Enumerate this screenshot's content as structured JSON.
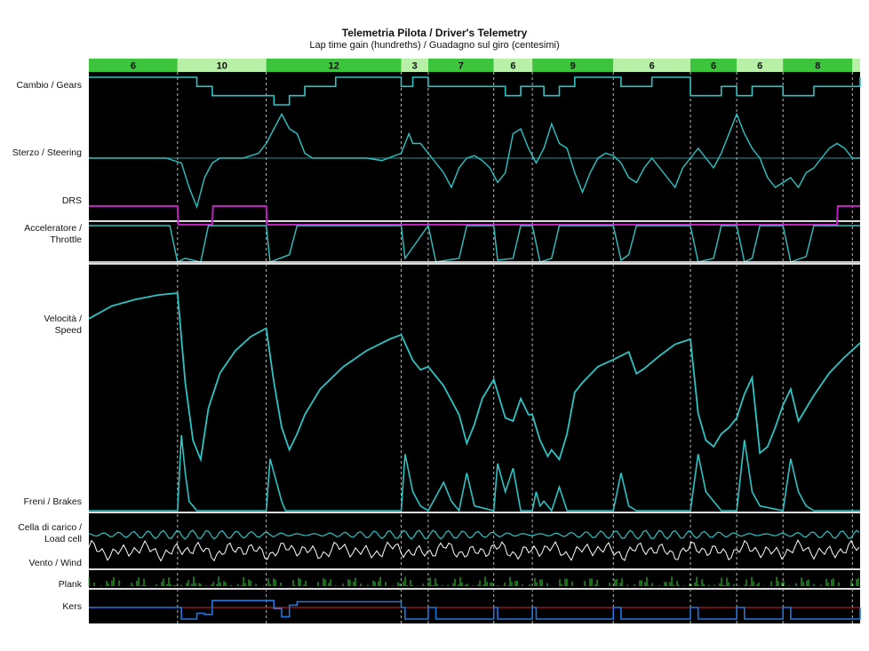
{
  "title": "Telemetria Pilota / Driver's Telemetry",
  "subtitle": "Lap time gain (hundreths) / Guadagno sul giro (centesimi)",
  "channels": [
    {
      "key": "gears",
      "label": "Cambio / Gears"
    },
    {
      "key": "steering",
      "label": "Sterzo / Steering"
    },
    {
      "key": "drs",
      "label": "DRS"
    },
    {
      "key": "throttle",
      "label": "Acceleratore / Throttle"
    },
    {
      "key": "speed",
      "label": "Velocità / Speed"
    },
    {
      "key": "brakes",
      "label": "Freni / Brakes"
    },
    {
      "key": "loadcell",
      "label": "Cella di carico / Load cell"
    },
    {
      "key": "wind",
      "label": "Vento / Wind"
    },
    {
      "key": "plank",
      "label": "Plank"
    },
    {
      "key": "kers",
      "label": "Kers"
    }
  ],
  "colors": {
    "background": "#000000",
    "trace": "#2ec4c4",
    "drs": "#c020c0",
    "white_trace": "#ffffff",
    "plank": "#33dd33",
    "kers": "#2277dd",
    "kers_red": "#dd2222",
    "header_dark": "#3cc43c",
    "header_light": "#b8f0a8"
  },
  "chart_data": {
    "type": "line",
    "x_range": [
      0,
      100
    ],
    "grid": "dashed vertical sector dividers",
    "sectors": [
      {
        "label": "6",
        "start": 0,
        "end": 11.5,
        "shade": "dark"
      },
      {
        "label": "10",
        "start": 11.5,
        "end": 23,
        "shade": "light"
      },
      {
        "label": "12",
        "start": 23,
        "end": 40.5,
        "shade": "dark"
      },
      {
        "label": "3",
        "start": 40.5,
        "end": 44,
        "shade": "light"
      },
      {
        "label": "7",
        "start": 44,
        "end": 52.5,
        "shade": "dark"
      },
      {
        "label": "6",
        "start": 52.5,
        "end": 57.5,
        "shade": "light"
      },
      {
        "label": "9",
        "start": 57.5,
        "end": 68,
        "shade": "dark"
      },
      {
        "label": "6",
        "start": 68,
        "end": 78,
        "shade": "light"
      },
      {
        "label": "6",
        "start": 78,
        "end": 84,
        "shade": "dark"
      },
      {
        "label": "6",
        "start": 84,
        "end": 90,
        "shade": "light"
      },
      {
        "label": "8",
        "start": 90,
        "end": 99,
        "shade": "dark"
      },
      {
        "label": "",
        "start": 99,
        "end": 100,
        "shade": "light"
      }
    ],
    "dividers": [
      11.5,
      23,
      40.5,
      44,
      52.5,
      57.5,
      68,
      78,
      84,
      90,
      99
    ],
    "series": {
      "gears": {
        "x": [
          0,
          12,
          14,
          16,
          18,
          20,
          22,
          24,
          26,
          28,
          30,
          32,
          34,
          36,
          38,
          40.5,
          42,
          44,
          46,
          48,
          50,
          52.5,
          54,
          56,
          57.5,
          59,
          61,
          63,
          65,
          67,
          69,
          71,
          73,
          75,
          77,
          78,
          80,
          82,
          84,
          86,
          88,
          90,
          92,
          94,
          96,
          98,
          100
        ],
        "y": [
          8,
          8,
          7,
          6,
          6,
          6,
          6,
          5,
          6,
          7,
          7,
          8,
          8,
          8,
          8,
          7,
          8,
          7,
          7,
          7,
          7,
          7,
          6,
          7,
          7,
          6,
          7,
          8,
          8,
          8,
          7,
          7,
          8,
          8,
          8,
          6,
          6,
          7,
          6,
          7,
          7,
          6,
          6,
          7,
          7,
          7,
          8
        ]
      },
      "steering": {
        "x": [
          0,
          10,
          12,
          13,
          14,
          15,
          16,
          17,
          18,
          20,
          22,
          23,
          24,
          25,
          26,
          27,
          28,
          29,
          30,
          32,
          36,
          38,
          40.5,
          41.5,
          42,
          43,
          44,
          45,
          46,
          47,
          48,
          49,
          50,
          51,
          52,
          53,
          54,
          55,
          56,
          57,
          58,
          59,
          60,
          61,
          62,
          63,
          64,
          65,
          66,
          67,
          68,
          69,
          70,
          71,
          72,
          73,
          74,
          75,
          76,
          77,
          78,
          79,
          80,
          81,
          82,
          83,
          84,
          85,
          86,
          87,
          88,
          89,
          90,
          91,
          92,
          93,
          94,
          95,
          96,
          97,
          98,
          99,
          100
        ],
        "y": [
          0,
          0,
          -0.1,
          -0.6,
          -1,
          -0.4,
          -0.1,
          0,
          0,
          0,
          0.1,
          0.3,
          0.6,
          0.9,
          0.6,
          0.5,
          0.1,
          0,
          0,
          0,
          0,
          -0.05,
          0.1,
          0.5,
          0.3,
          0.3,
          0.1,
          -0.1,
          -0.3,
          -0.6,
          -0.2,
          0,
          0.05,
          -0.05,
          -0.2,
          -0.5,
          -0.3,
          0.5,
          0.6,
          0.2,
          -0.1,
          0.2,
          0.7,
          0.3,
          0.2,
          -0.3,
          -0.7,
          -0.3,
          0,
          0.1,
          0.05,
          -0.1,
          -0.4,
          -0.5,
          -0.2,
          0,
          -0.2,
          -0.4,
          -0.6,
          -0.2,
          0,
          0.2,
          0,
          -0.2,
          0.1,
          0.5,
          0.9,
          0.5,
          0.2,
          0,
          -0.4,
          -0.6,
          -0.5,
          -0.4,
          -0.6,
          -0.3,
          -0.2,
          0,
          0.2,
          0.3,
          0.2,
          0,
          0
        ]
      },
      "drs": {
        "x": [
          0,
          11.5,
          11.6,
          16,
          16.1,
          23,
          23.1,
          97,
          97.1,
          100
        ],
        "y": [
          1,
          1,
          0,
          0,
          1,
          1,
          0,
          0,
          1,
          1
        ]
      },
      "throttle": {
        "x": [
          0,
          10.5,
          11.5,
          12.5,
          14.5,
          15.5,
          16,
          20,
          23,
          23.5,
          26,
          27,
          40.5,
          41,
          44,
          45,
          48,
          49,
          52.5,
          53,
          55,
          56,
          57.5,
          58.5,
          60,
          61,
          63,
          64,
          68,
          69,
          70,
          71,
          78,
          79,
          81,
          82,
          84,
          85,
          86,
          87,
          90,
          91,
          93,
          94,
          100
        ],
        "y": [
          100,
          100,
          0,
          10,
          0,
          100,
          100,
          100,
          100,
          0,
          20,
          100,
          100,
          10,
          100,
          0,
          10,
          100,
          100,
          5,
          10,
          100,
          100,
          0,
          10,
          100,
          100,
          100,
          100,
          5,
          20,
          100,
          100,
          0,
          10,
          100,
          100,
          0,
          10,
          100,
          100,
          0,
          15,
          100,
          100
        ]
      },
      "speed": {
        "x": [
          0,
          3,
          6,
          9,
          11.5,
          12.5,
          13.5,
          14.5,
          15.5,
          17,
          19,
          21,
          23,
          24,
          25,
          26,
          27,
          28,
          30,
          33,
          36,
          39,
          40.5,
          42,
          43,
          44,
          46,
          48,
          49,
          50,
          51,
          52.5,
          54,
          55,
          56,
          57,
          57.5,
          58.5,
          59.5,
          60,
          61,
          62,
          63,
          64,
          66,
          68,
          70,
          71,
          72,
          74,
          76,
          78,
          79,
          80,
          81,
          82,
          83,
          84,
          85,
          86,
          87,
          88,
          89,
          90,
          91,
          92,
          94,
          96,
          98,
          100
        ],
        "y": [
          300,
          320,
          330,
          337,
          340,
          200,
          110,
          80,
          160,
          215,
          250,
          272,
          285,
          200,
          130,
          95,
          120,
          150,
          190,
          225,
          250,
          268,
          275,
          235,
          220,
          225,
          195,
          150,
          105,
          135,
          175,
          205,
          145,
          140,
          175,
          150,
          150,
          110,
          85,
          95,
          80,
          120,
          185,
          200,
          225,
          236,
          248,
          214,
          222,
          242,
          260,
          268,
          152,
          110,
          100,
          120,
          130,
          145,
          182,
          208,
          90,
          100,
          130,
          165,
          190,
          140,
          180,
          215,
          240,
          262
        ]
      },
      "brakes": {
        "x": [
          0,
          11.5,
          12,
          12.5,
          13,
          14,
          15,
          23,
          23.5,
          24,
          25,
          25.5,
          40.5,
          41,
          42,
          43,
          44,
          46,
          47,
          48,
          49,
          50,
          52.5,
          53,
          54,
          55,
          56,
          57.5,
          58,
          58.5,
          59,
          60,
          61,
          62,
          63,
          64,
          68,
          69,
          70,
          71,
          78,
          79,
          80,
          81,
          82,
          84,
          85,
          86,
          87,
          90,
          91,
          92,
          93,
          94,
          100
        ],
        "y": [
          0,
          0,
          80,
          40,
          10,
          0,
          0,
          0,
          55,
          40,
          10,
          0,
          0,
          60,
          20,
          5,
          0,
          30,
          10,
          0,
          40,
          5,
          0,
          50,
          20,
          45,
          0,
          0,
          20,
          5,
          10,
          0,
          25,
          0,
          0,
          0,
          0,
          40,
          5,
          0,
          0,
          60,
          20,
          10,
          0,
          0,
          75,
          20,
          5,
          0,
          55,
          20,
          5,
          0,
          0
        ]
      },
      "kers": {
        "x": [
          0,
          11.5,
          12,
          14,
          15,
          16,
          23,
          24,
          25,
          26,
          27,
          28,
          40.5,
          41,
          44,
          45,
          52.5,
          53,
          57.5,
          58,
          68,
          69,
          78,
          79,
          84,
          85,
          90,
          91,
          100
        ],
        "y": [
          0,
          0,
          -1,
          -0.5,
          -0.6,
          0.6,
          0.6,
          -0.1,
          -0.8,
          0.2,
          0.5,
          0.5,
          0,
          -1,
          0,
          -1,
          0,
          -1,
          0,
          -1,
          0,
          -1,
          0,
          -1,
          0,
          -1,
          0,
          -1,
          0
        ]
      }
    }
  }
}
